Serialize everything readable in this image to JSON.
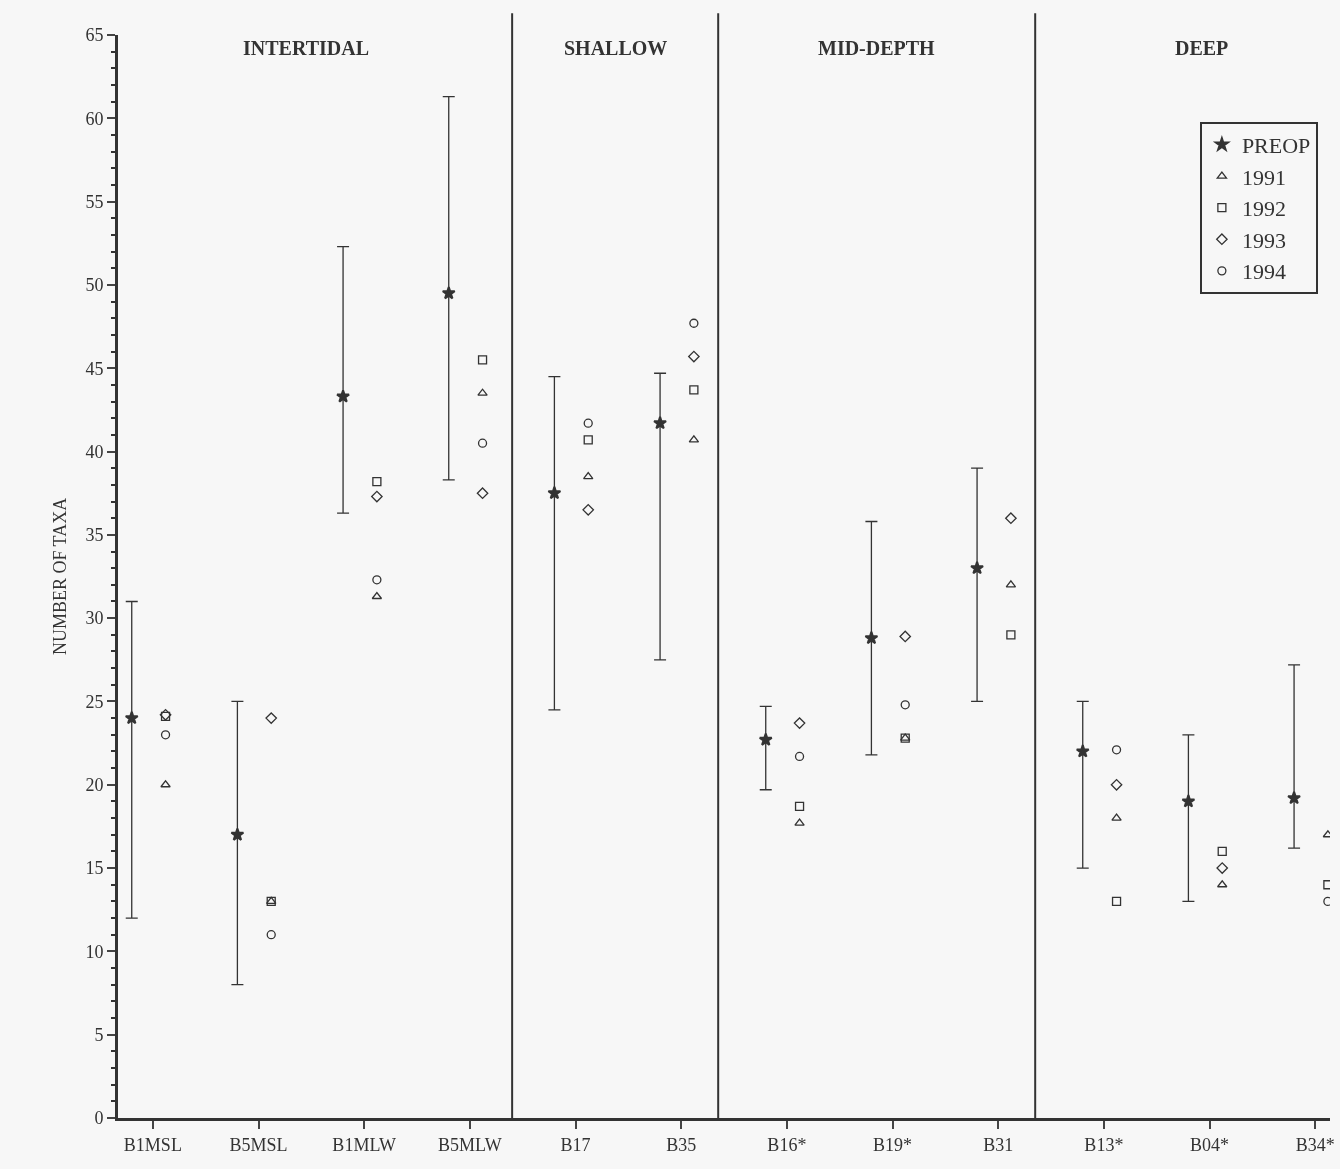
{
  "chart_data": {
    "type": "scatter",
    "ylabel": "NUMBER OF TAXA",
    "categories": [
      "B1MSL",
      "B5MSL",
      "B1MLW",
      "B5MLW",
      "B17",
      "B35",
      "B16*",
      "B19*",
      "B31",
      "B13*",
      "B04*",
      "B34*"
    ],
    "series": [
      {
        "name": "PREOP",
        "color": "#333333",
        "marker": "star",
        "values": [
          24,
          17,
          43.3,
          49.5,
          37.5,
          41.7,
          22.7,
          28.8,
          33,
          22,
          19,
          19.2
        ],
        "errors": [
          [
            12,
            31
          ],
          [
            8,
            25
          ],
          [
            36.3,
            52.3
          ],
          [
            38.3,
            61.3
          ],
          [
            24.5,
            44.5
          ],
          [
            27.5,
            44.7
          ],
          [
            19.7,
            24.7
          ],
          [
            21.8,
            35.8
          ],
          [
            25,
            39
          ],
          [
            15,
            25
          ],
          [
            13,
            23
          ],
          [
            16.2,
            27.2
          ]
        ]
      },
      {
        "name": "1991",
        "color": "#333333",
        "marker": "triangle",
        "values": [
          20,
          13,
          31.3,
          43.5,
          38.5,
          40.7,
          17.7,
          22.8,
          32,
          18,
          14,
          17
        ]
      },
      {
        "name": "1992",
        "color": "#333333",
        "marker": "square",
        "values": [
          24.1,
          13,
          38.2,
          45.5,
          40.7,
          43.7,
          18.7,
          22.8,
          29,
          13,
          16,
          14
        ]
      },
      {
        "name": "1993",
        "color": "#333333",
        "marker": "diamond",
        "values": [
          24.2,
          24,
          37.3,
          37.5,
          36.5,
          45.7,
          23.7,
          28.9,
          36,
          20,
          15,
          null
        ]
      },
      {
        "name": "1994",
        "color": "#333333",
        "marker": "circle",
        "values": [
          23,
          11,
          32.3,
          40.5,
          41.7,
          47.7,
          21.7,
          24.8,
          null,
          22.1,
          null,
          13
        ]
      }
    ],
    "annotations": [
      "INTERTIDAL",
      "SHALLOW",
      "MID-DEPTH",
      "DEEP"
    ],
    "ylim": [
      0,
      65
    ],
    "yticks": [
      0,
      5,
      10,
      15,
      20,
      25,
      30,
      35,
      40,
      45,
      50,
      55,
      60,
      65
    ],
    "grid": false,
    "legend": "top right"
  }
}
